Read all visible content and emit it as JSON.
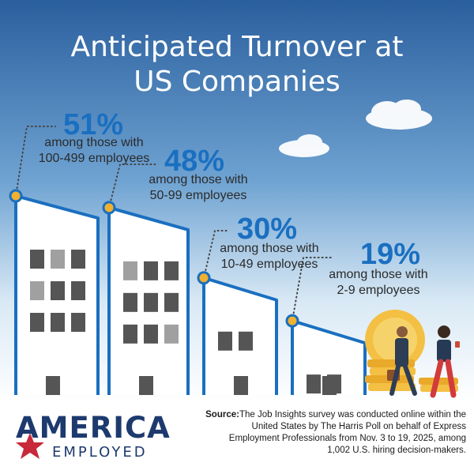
{
  "title_line1": "Anticipated Turnover at",
  "title_line2": "US Companies",
  "chart_data": {
    "type": "bar",
    "title": "Anticipated Turnover at US Companies",
    "categories": [
      "100-499 employees",
      "50-99 employees",
      "10-49 employees",
      "2-9 employees"
    ],
    "values": [
      51,
      48,
      30,
      19
    ],
    "unit": "%",
    "labels": [
      {
        "value": "51%",
        "line1": "among those with",
        "line2": "100-499 employees"
      },
      {
        "value": "48%",
        "line1": "among those with",
        "line2": "50-99 employees"
      },
      {
        "value": "30%",
        "line1": "among those with",
        "line2": "10-49 employees"
      },
      {
        "value": "19%",
        "line1": "among those with",
        "line2": "2-9 employees"
      }
    ]
  },
  "brand": {
    "top": "AMERICA",
    "bottom": "EMPLOYED"
  },
  "source": {
    "label": "Source:",
    "text": "The Job Insights survey was conducted online within the United States by The Harris Poll on behalf of Express Employment Professionals from Nov. 3 to 19, 2025, among 1,002 U.S. hiring decision-makers."
  },
  "colors": {
    "sky_top": "#2a5f9e",
    "sky_bottom": "#ffffff",
    "accent_blue": "#1a6fc0",
    "marker": "#f0b030",
    "window_dark": "#555555",
    "window_light": "#a0a0a0",
    "building": "#ffffff"
  }
}
